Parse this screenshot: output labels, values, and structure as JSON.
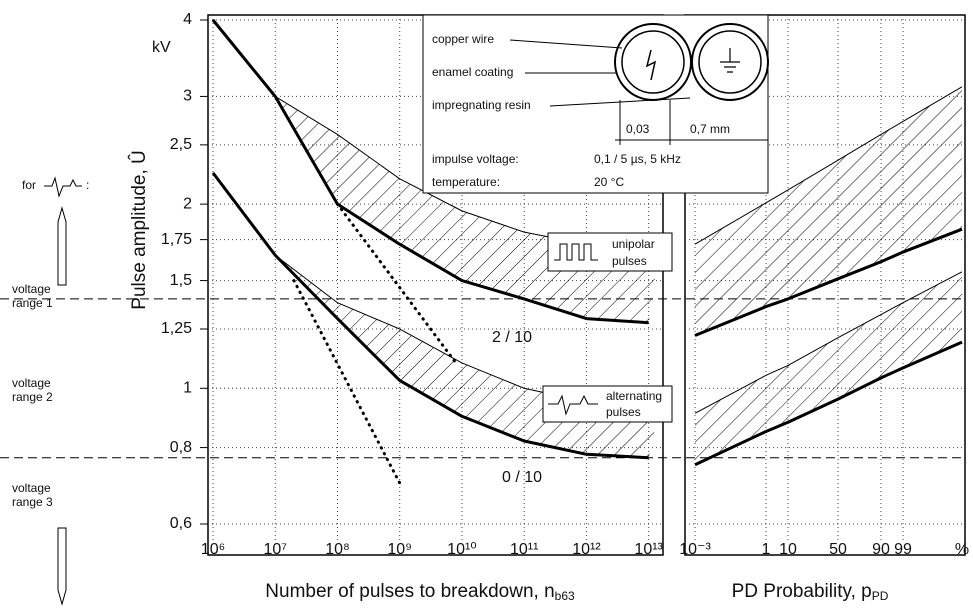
{
  "chart_data": [
    {
      "type": "line",
      "y_label": "Pulse amplitude, Û",
      "y_unit": "kV",
      "x_label": {
        "text": "Number of pulses to breakdown, n",
        "subscript": "b63"
      },
      "log_x": true,
      "log_y": true,
      "grid": true,
      "xlim": [
        1000000,
        17000000000000
      ],
      "ylim": [
        0.6,
        4
      ],
      "xticks": [
        {
          "value": 1000000,
          "label": "10⁶"
        },
        {
          "value": 10000000,
          "label": "10⁷"
        },
        {
          "value": 100000000,
          "label": "10⁸"
        },
        {
          "value": 1000000000,
          "label": "10⁹"
        },
        {
          "value": 10000000000,
          "label": "10¹⁰"
        },
        {
          "value": 100000000000,
          "label": "10¹¹"
        },
        {
          "value": 1000000000000,
          "label": "10¹²"
        },
        {
          "value": 10000000000000,
          "label": "10¹³"
        }
      ],
      "yticks": [
        {
          "value": 0.6,
          "label": "0,6"
        },
        {
          "value": 0.8,
          "label": "0,8"
        },
        1,
        {
          "value": 1.25,
          "label": "1,25"
        },
        {
          "value": 1.5,
          "label": "1,5"
        },
        {
          "value": 1.75,
          "label": "1,75"
        },
        2,
        {
          "value": 2.5,
          "label": "2,5"
        },
        3,
        4
      ],
      "reference_lines": [
        1.4,
        0.77
      ],
      "annotations": [
        "2 / 10",
        "0 / 10"
      ],
      "series": [
        {
          "color": "#000000",
          "width": 3,
          "hatch_with": 1,
          "x": [
            1000000,
            10000000,
            100000000,
            1000000000,
            10000000000,
            100000000000,
            1000000000000,
            10000000000000
          ],
          "values": [
            4,
            3,
            2,
            1.72,
            1.5,
            1.4,
            1.3,
            1.28
          ]
        },
        {
          "color": "#000000",
          "width": 1,
          "x": [
            10000000,
            100000000,
            1000000000,
            10000000000,
            100000000000,
            1000000000000,
            15000000000000
          ],
          "values": [
            3,
            2.6,
            2.2,
            1.95,
            1.8,
            1.72,
            1.7
          ]
        },
        {
          "color": "#000000",
          "width": 3,
          "hatch_with": 3,
          "x": [
            1000000,
            10000000,
            100000000,
            1000000000,
            10000000000,
            100000000000,
            1000000000000,
            10000000000000
          ],
          "values": [
            2.25,
            1.65,
            1.3,
            1.03,
            0.9,
            0.82,
            0.78,
            0.77
          ]
        },
        {
          "color": "#000000",
          "width": 1,
          "x": [
            10000000,
            100000000,
            1000000000,
            10000000000,
            100000000000,
            1000000000000,
            15000000000000
          ],
          "values": [
            1.65,
            1.38,
            1.25,
            1.1,
            1,
            0.95,
            0.93
          ]
        },
        {
          "color": "#000000",
          "width": 3,
          "dotted": true,
          "x": [
            100000000,
            8000000000
          ],
          "values": [
            2,
            1.1
          ]
        },
        {
          "color": "#000000",
          "width": 3,
          "dotted": true,
          "x": [
            20000000,
            1000000000
          ],
          "values": [
            1.5,
            0.7
          ]
        }
      ]
    },
    {
      "type": "line",
      "x_label": {
        "text": "PD Probability, p",
        "subscript": "PD"
      },
      "log_y": true,
      "grid": true,
      "ylim": [
        0.6,
        4
      ],
      "categories": [
        "10⁻³",
        "1",
        "10",
        "50",
        "90",
        "99",
        "%"
      ],
      "series": [
        {
          "color": "#000000",
          "width": 1,
          "values": [
            1.72,
            2.01,
            2.11,
            2.36,
            2.6,
            2.73,
            3.11
          ]
        },
        {
          "color": "#000000",
          "width": 3,
          "hatch_with": 0,
          "values": [
            1.22,
            1.36,
            1.4,
            1.51,
            1.61,
            1.67,
            1.82
          ]
        },
        {
          "color": "#000000",
          "width": 1,
          "values": [
            0.91,
            1.05,
            1.09,
            1.21,
            1.32,
            1.38,
            1.55
          ]
        },
        {
          "color": "#000000",
          "width": 3,
          "hatch_with": 2,
          "values": [
            0.75,
            0.85,
            0.88,
            0.96,
            1.04,
            1.08,
            1.19
          ]
        }
      ]
    }
  ],
  "side_labels": {
    "prefix": "for",
    "suffix": ":",
    "ranges": [
      [
        "voltage",
        "range 1"
      ],
      [
        "voltage",
        "range 2"
      ],
      [
        "voltage",
        "range 3"
      ]
    ]
  },
  "inset": {
    "copper": "copper wire",
    "enamel": "enamel coating",
    "resin": "impregnating resin",
    "dim1": "0,03",
    "dim2": "0,7 mm",
    "impulse_label": "impulse voltage:",
    "impulse_value": "0,1 / 5 µs, 5 kHz",
    "temp_label": "temperature:",
    "temp_value": "20 °C"
  },
  "boxes": {
    "unipolar": [
      "unipolar",
      "pulses"
    ],
    "alternating": [
      "alternating",
      "pulses"
    ]
  }
}
